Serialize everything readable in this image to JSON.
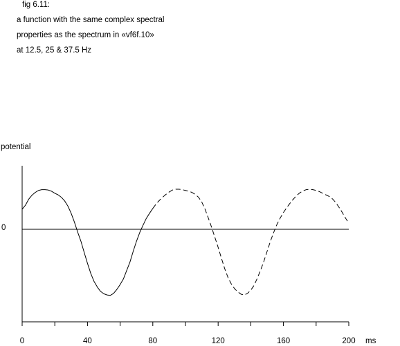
{
  "caption": {
    "fig": "fig 6.11:",
    "line1": "a function with the same complex spectral",
    "line2": "properties as the spectrum in «vf6f.10»",
    "line3": "at 12.5, 25 & 37.5 Hz"
  },
  "chart_data": {
    "type": "line",
    "title": "",
    "ylabel": "potential",
    "xlabel": "ms",
    "zero_label": "0",
    "xlim": [
      0,
      200
    ],
    "ylim": [
      -1.6,
      1.1
    ],
    "x_ticks": [
      0,
      40,
      80,
      120,
      160,
      200
    ],
    "x_tick_labels": [
      "0",
      "40",
      "80",
      "120",
      "160",
      "200"
    ],
    "minor_x_ticks": [
      20,
      60,
      100,
      140,
      180
    ],
    "grid": false,
    "series": [
      {
        "style": "solid",
        "x": [
          0,
          2,
          4,
          6,
          8,
          10,
          12,
          14,
          16,
          18,
          20,
          22,
          24,
          26,
          28,
          30,
          32,
          34,
          36,
          38,
          40,
          42,
          44,
          46,
          48,
          50,
          52,
          54,
          56,
          58,
          60,
          62,
          64,
          66,
          68,
          70,
          72,
          74,
          76,
          78,
          80
        ],
        "y": [
          0.5,
          0.6,
          0.75,
          0.85,
          0.92,
          0.97,
          0.99,
          0.99,
          0.98,
          0.95,
          0.9,
          0.86,
          0.8,
          0.71,
          0.58,
          0.4,
          0.18,
          -0.07,
          -0.3,
          -0.58,
          -0.85,
          -1.1,
          -1.3,
          -1.44,
          -1.55,
          -1.61,
          -1.64,
          -1.65,
          -1.6,
          -1.5,
          -1.38,
          -1.24,
          -1.03,
          -0.82,
          -0.55,
          -0.3,
          -0.08,
          0.1,
          0.27,
          0.4,
          0.52
        ]
      },
      {
        "style": "dashed",
        "x": [
          80,
          82,
          84,
          86,
          88,
          90,
          92,
          94,
          96,
          98,
          100,
          102,
          104,
          106,
          108,
          110,
          112,
          114,
          116,
          118,
          120,
          122,
          124,
          126,
          128,
          130,
          132,
          134,
          136,
          138,
          140,
          142,
          144,
          146,
          148,
          150,
          152,
          154,
          156,
          158,
          160,
          162,
          164,
          166,
          168,
          170,
          172,
          174,
          176,
          178,
          180,
          182,
          184,
          186,
          188,
          190,
          192,
          194,
          196,
          198,
          200
        ],
        "y": [
          0.52,
          0.63,
          0.72,
          0.8,
          0.87,
          0.93,
          0.98,
          1.0,
          1.0,
          0.99,
          0.97,
          0.95,
          0.92,
          0.87,
          0.8,
          0.68,
          0.5,
          0.28,
          0.05,
          -0.2,
          -0.45,
          -0.72,
          -0.98,
          -1.2,
          -1.36,
          -1.48,
          -1.56,
          -1.62,
          -1.64,
          -1.6,
          -1.52,
          -1.4,
          -1.22,
          -1.02,
          -0.8,
          -0.55,
          -0.3,
          -0.08,
          0.12,
          0.28,
          0.42,
          0.54,
          0.65,
          0.75,
          0.84,
          0.91,
          0.96,
          0.99,
          1.0,
          0.99,
          0.97,
          0.94,
          0.9,
          0.86,
          0.82,
          0.76,
          0.67,
          0.55,
          0.42,
          0.28,
          0.15
        ]
      }
    ]
  },
  "colors": {
    "stroke": "#000000",
    "background": "#ffffff"
  }
}
